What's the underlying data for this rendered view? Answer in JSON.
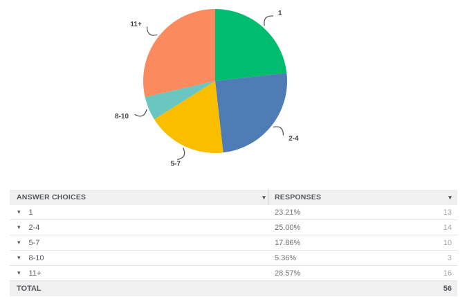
{
  "chart_data": {
    "type": "pie",
    "title": "",
    "categories": [
      "1",
      "2-4",
      "5-7",
      "8-10",
      "11+"
    ],
    "values": [
      13,
      14,
      10,
      3,
      16
    ],
    "percents": [
      "23.21%",
      "25.00%",
      "17.86%",
      "5.36%",
      "28.57%"
    ],
    "total": 56,
    "colors": [
      "#00bc6f",
      "#507cb6",
      "#f9be00",
      "#6ac6c1",
      "#fb8a5e"
    ],
    "start_angle_deg": 0,
    "direction": "clockwise",
    "legend_position": "none",
    "label_color": "#3d3f42",
    "leader_color": "#55575a"
  },
  "table": {
    "headers": [
      {
        "label": "ANSWER CHOICES"
      },
      {
        "label": "RESPONSES"
      }
    ],
    "rows": [
      {
        "label": "1",
        "percent": "23.21%",
        "count": "13"
      },
      {
        "label": "2-4",
        "percent": "25.00%",
        "count": "14"
      },
      {
        "label": "5-7",
        "percent": "17.86%",
        "count": "10"
      },
      {
        "label": "8-10",
        "percent": "5.36%",
        "count": "3"
      },
      {
        "label": "11+",
        "percent": "28.57%",
        "count": "16"
      }
    ],
    "total_label": "TOTAL",
    "total_count": "56"
  },
  "icons": {
    "sort_caret": "▾",
    "expand_caret": "▾"
  },
  "theme": {
    "header_bg": "#f0f0f1",
    "row_border": "#e4e4e6",
    "header_text": "#54585e",
    "percent_text": "#6d7075",
    "count_text": "#9fa2a7"
  }
}
